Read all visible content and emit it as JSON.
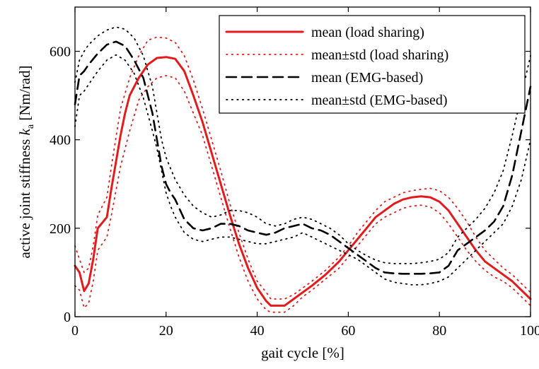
{
  "chart_data": {
    "type": "line",
    "xlabel": "gait cycle [%]",
    "ylabel_main": "active joint stiffness ",
    "ylabel_var": "k",
    "ylabel_sub": "a",
    "ylabel_unit": " [Nm/rad]",
    "xlim": [
      0,
      100
    ],
    "ylim": [
      0,
      700
    ],
    "xticks": [
      0,
      20,
      40,
      60,
      80,
      100
    ],
    "yticks": [
      0,
      200,
      400,
      600
    ],
    "grid": false,
    "legend_position": "top-right",
    "series": [
      {
        "name": "mean (load sharing)",
        "style": "solid",
        "color": "#e41a1c",
        "x": [
          0,
          1,
          2,
          3,
          4,
          5,
          7,
          8,
          10,
          11,
          12,
          14,
          16,
          18,
          20,
          22,
          24,
          26,
          28,
          30,
          32,
          34,
          36,
          38,
          40,
          42,
          43,
          44,
          46,
          48,
          50,
          52,
          55,
          58,
          60,
          62,
          64,
          66,
          68,
          70,
          72,
          74,
          76,
          78,
          80,
          82,
          84,
          86,
          88,
          90,
          92,
          94,
          96,
          98,
          100
        ],
        "y": [
          115,
          100,
          58,
          75,
          130,
          200,
          225,
          290,
          410,
          460,
          500,
          540,
          570,
          585,
          587,
          583,
          555,
          500,
          440,
          370,
          300,
          230,
          165,
          110,
          65,
          35,
          25,
          25,
          25,
          40,
          55,
          70,
          95,
          125,
          150,
          175,
          200,
          225,
          240,
          255,
          265,
          270,
          272,
          270,
          260,
          240,
          210,
          180,
          150,
          125,
          110,
          95,
          80,
          60,
          40
        ]
      },
      {
        "name": "mean±std (load sharing)",
        "style": "dotted",
        "color": "#e41a1c",
        "x": [
          0,
          1,
          2,
          3,
          4,
          5,
          7,
          8,
          10,
          12,
          14,
          16,
          18,
          20,
          22,
          24,
          26,
          28,
          30,
          32,
          34,
          36,
          38,
          40,
          42,
          43,
          44,
          46,
          48,
          50,
          52,
          55,
          58,
          60,
          62,
          64,
          66,
          68,
          70,
          72,
          74,
          76,
          78,
          80,
          82,
          84,
          86,
          88,
          90,
          92,
          94,
          96,
          98,
          100
        ],
        "y": [
          160,
          130,
          100,
          110,
          160,
          230,
          270,
          340,
          470,
          540,
          590,
          625,
          632,
          630,
          620,
          590,
          535,
          470,
          400,
          330,
          255,
          190,
          130,
          80,
          55,
          40,
          40,
          40,
          50,
          65,
          80,
          105,
          135,
          160,
          190,
          215,
          240,
          260,
          270,
          280,
          285,
          288,
          290,
          285,
          270,
          245,
          215,
          180,
          150,
          130,
          110,
          95,
          75,
          55
        ]
      },
      {
        "name": "",
        "style": "dotted",
        "color": "#e41a1c",
        "x": [
          0,
          1,
          2,
          3,
          4,
          5,
          7,
          8,
          10,
          12,
          14,
          16,
          18,
          20,
          22,
          24,
          26,
          28,
          30,
          32,
          34,
          36,
          38,
          40,
          42,
          43,
          44,
          46,
          48,
          50,
          52,
          55,
          58,
          60,
          62,
          64,
          66,
          68,
          70,
          72,
          74,
          76,
          78,
          80,
          82,
          84,
          86,
          88,
          90,
          92,
          94,
          96,
          98,
          100
        ],
        "y": [
          70,
          60,
          20,
          30,
          80,
          150,
          180,
          230,
          340,
          420,
          490,
          520,
          540,
          545,
          540,
          510,
          460,
          410,
          340,
          270,
          200,
          135,
          80,
          40,
          15,
          10,
          10,
          10,
          25,
          45,
          60,
          85,
          110,
          135,
          160,
          185,
          210,
          225,
          235,
          245,
          250,
          252,
          248,
          235,
          210,
          180,
          150,
          125,
          105,
          90,
          80,
          65,
          45,
          25
        ]
      },
      {
        "name": "mean (EMG-based)",
        "style": "dashed",
        "color": "#000000",
        "x": [
          0,
          1,
          2,
          3,
          5,
          7,
          9,
          11,
          13,
          15,
          17,
          18,
          19,
          20,
          21,
          22,
          24,
          26,
          28,
          30,
          32,
          34,
          36,
          38,
          40,
          42,
          44,
          46,
          48,
          50,
          52,
          54,
          56,
          58,
          60,
          62,
          64,
          66,
          68,
          70,
          72,
          74,
          76,
          78,
          80,
          82,
          84,
          86,
          88,
          90,
          92,
          94,
          96,
          98,
          100
        ],
        "y": [
          480,
          545,
          555,
          570,
          595,
          615,
          622,
          612,
          580,
          540,
          460,
          400,
          340,
          300,
          280,
          265,
          220,
          200,
          195,
          200,
          210,
          210,
          205,
          195,
          190,
          185,
          190,
          200,
          205,
          210,
          200,
          195,
          185,
          170,
          155,
          140,
          125,
          110,
          100,
          98,
          97,
          97,
          97,
          98,
          100,
          115,
          150,
          165,
          180,
          195,
          215,
          250,
          320,
          420,
          520
        ]
      },
      {
        "name": "mean±std (EMG-based)",
        "style": "dotted",
        "color": "#000000",
        "x": [
          0,
          1,
          2,
          3,
          5,
          7,
          9,
          11,
          13,
          15,
          17,
          18,
          19,
          20,
          21,
          22,
          24,
          26,
          28,
          30,
          32,
          34,
          36,
          38,
          40,
          42,
          44,
          46,
          48,
          50,
          52,
          54,
          56,
          58,
          60,
          62,
          64,
          66,
          68,
          70,
          72,
          74,
          76,
          78,
          80,
          82,
          84,
          86,
          88,
          90,
          92,
          94,
          96,
          98,
          100
        ],
        "y": [
          530,
          580,
          600,
          615,
          635,
          648,
          655,
          650,
          630,
          590,
          520,
          460,
          400,
          360,
          335,
          310,
          275,
          250,
          235,
          225,
          230,
          240,
          240,
          235,
          225,
          210,
          205,
          210,
          220,
          225,
          220,
          210,
          200,
          185,
          165,
          150,
          138,
          128,
          122,
          120,
          120,
          120,
          122,
          125,
          130,
          145,
          180,
          200,
          220,
          245,
          280,
          330,
          410,
          500,
          590
        ]
      },
      {
        "name": "",
        "style": "dotted",
        "color": "#000000",
        "x": [
          0,
          1,
          2,
          3,
          5,
          7,
          9,
          11,
          13,
          15,
          17,
          18,
          19,
          20,
          21,
          22,
          24,
          26,
          28,
          30,
          32,
          34,
          36,
          38,
          40,
          42,
          44,
          46,
          48,
          50,
          52,
          54,
          56,
          58,
          60,
          62,
          64,
          66,
          68,
          70,
          72,
          74,
          76,
          78,
          80,
          82,
          84,
          86,
          88,
          90,
          92,
          94,
          96,
          98,
          100
        ],
        "y": [
          430,
          500,
          510,
          525,
          555,
          580,
          592,
          580,
          550,
          495,
          420,
          380,
          330,
          280,
          250,
          225,
          190,
          175,
          170,
          175,
          180,
          180,
          175,
          170,
          165,
          165,
          170,
          175,
          180,
          190,
          180,
          170,
          160,
          150,
          140,
          130,
          115,
          100,
          85,
          78,
          75,
          72,
          72,
          75,
          80,
          90,
          110,
          130,
          150,
          170,
          190,
          210,
          250,
          310,
          400
        ]
      }
    ],
    "legend": [
      {
        "label": "mean (load sharing)",
        "style": "solid",
        "color": "#e41a1c"
      },
      {
        "label": "mean±std (load sharing)",
        "style": "dotted",
        "color": "#e41a1c"
      },
      {
        "label": "mean (EMG-based)",
        "style": "dashed",
        "color": "#000000"
      },
      {
        "label": "mean±std (EMG-based)",
        "style": "dotted",
        "color": "#000000"
      }
    ]
  }
}
